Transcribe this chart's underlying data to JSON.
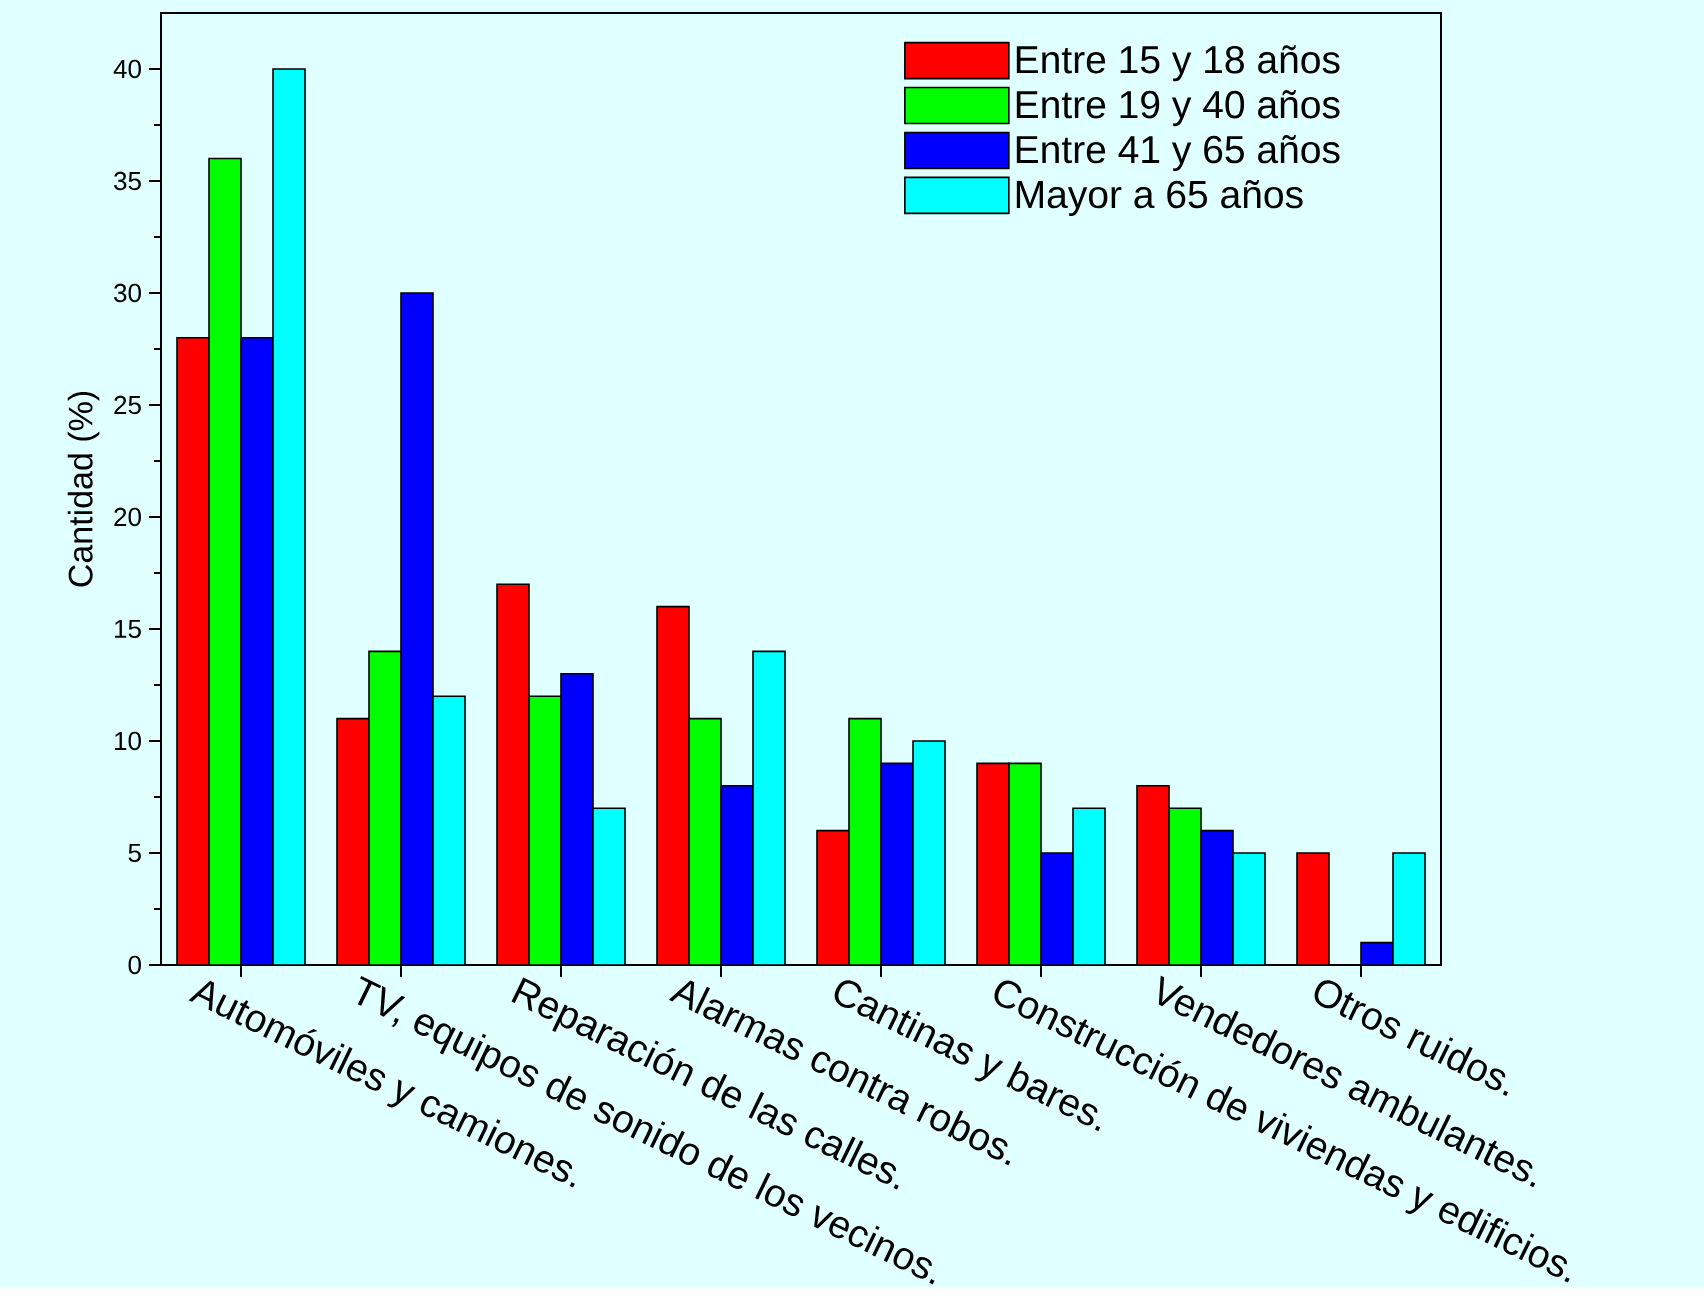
{
  "chart_data": {
    "type": "bar",
    "ylabel": "Cantidad (%)",
    "categories": [
      "Automóviles y camiones.",
      "TV, equipos de sonido de los vecinos.",
      "Reparación de las calles.",
      "Alarmas contra robos.",
      "Cantinas y bares.",
      "Construcción de viviendas y edificios.",
      "Vendedores ambulantes.",
      "Otros ruidos."
    ],
    "series": [
      {
        "name": "Entre 15 y 18 años",
        "color": "#ff0000",
        "values": [
          28,
          11,
          17,
          16,
          6,
          9,
          8,
          5
        ]
      },
      {
        "name": "Entre 19 y 40 años",
        "color": "#00ff00",
        "values": [
          36,
          14,
          12,
          11,
          11,
          9,
          7,
          0
        ]
      },
      {
        "name": "Entre 41 y 65 años",
        "color": "#0000ff",
        "values": [
          28,
          30,
          13,
          8,
          9,
          5,
          6,
          1
        ]
      },
      {
        "name": "Mayor a 65 años",
        "color": "#00ffff",
        "values": [
          40,
          12,
          7,
          14,
          10,
          7,
          5,
          5
        ]
      }
    ],
    "ylim": [
      0,
      42.5
    ],
    "yticks": [
      0,
      5,
      10,
      15,
      20,
      25,
      30,
      35,
      40
    ],
    "legend": "top right",
    "grid": false
  }
}
